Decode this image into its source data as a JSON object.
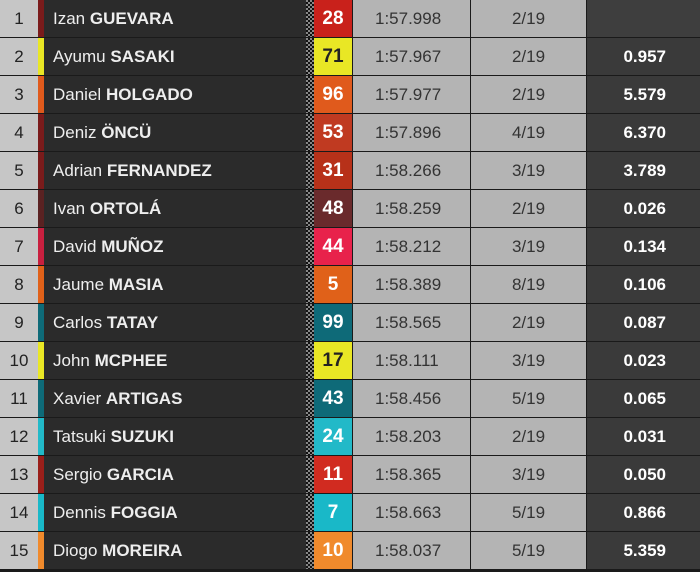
{
  "table": {
    "rows": [
      {
        "position": 1,
        "first": "Izan",
        "last": "GUEVARA",
        "number": 28,
        "color": "#c9211b",
        "stripe": "#7a1b1b",
        "best": "1:57.998",
        "lap": "2/19"
      },
      {
        "position": 2,
        "first": "Ayumu",
        "last": "SASAKI",
        "number": 71,
        "color": "#e9e725",
        "stripe": "#e9e725",
        "best": "1:57.967",
        "lap": "2/19",
        "gap": "0.957"
      },
      {
        "position": 3,
        "first": "Daniel",
        "last": "HOLGADO",
        "number": 96,
        "color": "#e05a1c",
        "stripe": "#e05a1c",
        "best": "1:57.977",
        "lap": "2/19",
        "gap": "5.579"
      },
      {
        "position": 4,
        "first": "Deniz",
        "last": "ÖNCÜ",
        "number": 53,
        "color": "#c03a21",
        "stripe": "#7a1b1b",
        "best": "1:57.896",
        "lap": "4/19",
        "gap": "6.370"
      },
      {
        "position": 5,
        "first": "Adrian",
        "last": "FERNANDEZ",
        "number": 31,
        "color": "#b73119",
        "stripe": "#7a1b1b",
        "best": "1:58.266",
        "lap": "3/19",
        "gap": "3.789"
      },
      {
        "position": 6,
        "first": "Ivan",
        "last": "ORTOLÁ",
        "number": 48,
        "color": "#6a2a2c",
        "stripe": "#5a2222",
        "best": "1:58.259",
        "lap": "2/19",
        "gap": "0.026"
      },
      {
        "position": 7,
        "first": "David",
        "last": "MUÑOZ",
        "number": 44,
        "color": "#e8224b",
        "stripe": "#c8203f",
        "best": "1:58.212",
        "lap": "3/19",
        "gap": "0.134"
      },
      {
        "position": 8,
        "first": "Jaume",
        "last": "MASIA",
        "number": 5,
        "color": "#e06119",
        "stripe": "#e06119",
        "best": "1:58.389",
        "lap": "8/19",
        "gap": "0.106"
      },
      {
        "position": 9,
        "first": "Carlos",
        "last": "TATAY",
        "number": 99,
        "color": "#0e6a78",
        "stripe": "#0e6a78",
        "best": "1:58.565",
        "lap": "2/19",
        "gap": "0.087"
      },
      {
        "position": 10,
        "first": "John",
        "last": "MCPHEE",
        "number": 17,
        "color": "#e9e725",
        "stripe": "#e9e725",
        "best": "1:58.111",
        "lap": "3/19",
        "gap": "0.023"
      },
      {
        "position": 11,
        "first": "Xavier",
        "last": "ARTIGAS",
        "number": 43,
        "color": "#0e6a78",
        "stripe": "#0e6a78",
        "best": "1:58.456",
        "lap": "5/19",
        "gap": "0.065"
      },
      {
        "position": 12,
        "first": "Tatsuki",
        "last": "SUZUKI",
        "number": 24,
        "color": "#22b9c8",
        "stripe": "#22b9c8",
        "best": "1:58.203",
        "lap": "2/19",
        "gap": "0.031"
      },
      {
        "position": 13,
        "first": "Sergio",
        "last": "GARCIA",
        "number": 11,
        "color": "#d12b20",
        "stripe": "#9a1f1a",
        "best": "1:58.365",
        "lap": "3/19",
        "gap": "0.050"
      },
      {
        "position": 14,
        "first": "Dennis",
        "last": "FOGGIA",
        "number": 7,
        "color": "#19b8c8",
        "stripe": "#19b8c8",
        "best": "1:58.663",
        "lap": "5/19",
        "gap": "0.866"
      },
      {
        "position": 15,
        "first": "Diogo",
        "last": "MOREIRA",
        "number": 10,
        "color": "#f08a2c",
        "stripe": "#f08a2c",
        "best": "1:58.037",
        "lap": "5/19",
        "gap": "5.359"
      }
    ]
  }
}
